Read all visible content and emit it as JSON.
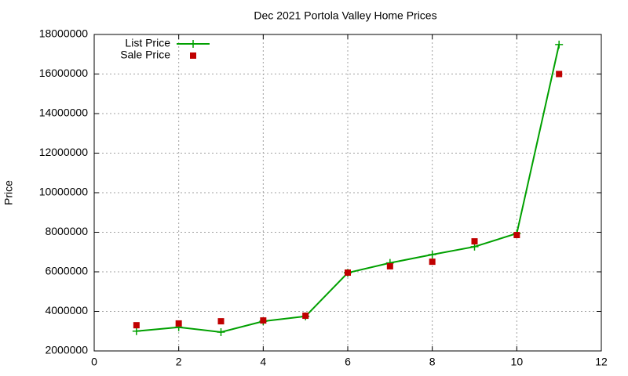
{
  "chart_data": {
    "type": "line",
    "title": "Dec 2021 Portola Valley Home Prices",
    "y_label": "Price",
    "x": [
      1,
      2,
      3,
      4,
      5,
      6,
      7,
      8,
      9,
      10,
      11
    ],
    "series": [
      {
        "name": "List Price",
        "color": "#00a000",
        "style": "linespoints",
        "values": [
          3000000,
          3200000,
          2950000,
          3500000,
          3750000,
          5950000,
          6450000,
          6870000,
          7270000,
          7940000,
          17490000
        ]
      },
      {
        "name": "Sale Price",
        "color": "#c00000",
        "style": "points",
        "values": [
          3300000,
          3390000,
          3500000,
          3540000,
          3780000,
          5960000,
          6280000,
          6510000,
          7540000,
          7860000,
          16000000
        ]
      }
    ],
    "xlim": [
      0,
      12
    ],
    "xticks": [
      0,
      2,
      4,
      6,
      8,
      10,
      12
    ],
    "ylim": [
      2000000,
      18000000
    ],
    "yticks": [
      2000000,
      4000000,
      6000000,
      8000000,
      10000000,
      12000000,
      14000000,
      16000000,
      18000000
    ],
    "grid": true,
    "legend": "top-left"
  }
}
